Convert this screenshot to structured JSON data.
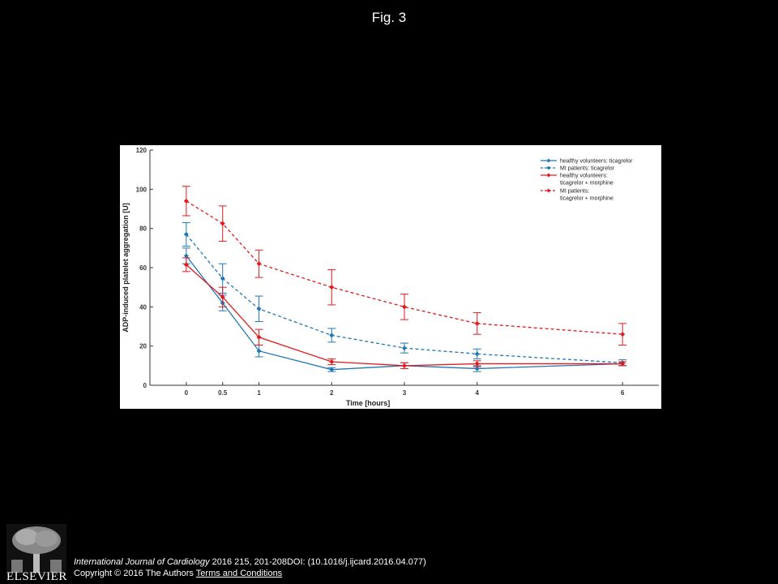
{
  "figure": {
    "title": "Fig. 3"
  },
  "footer": {
    "journal": "International Journal of Cardiology",
    "citation_rest": " 2016 215, 201-208DOI: (10.1016/j.ijcard.2016.04.077)",
    "copyright": "Copyright © 2016 The Authors",
    "terms_link": "Terms and Conditions",
    "publisher_logo_text": "ELSEVIER"
  },
  "chart_data": {
    "type": "line",
    "title": "",
    "xlabel": "Time [hours]",
    "ylabel": "ADP-induced platelet aggregation [U]",
    "x": [
      0,
      0.5,
      1,
      2,
      3,
      4,
      6
    ],
    "xticks": [
      "0",
      "0.5",
      "1",
      "2",
      "3",
      "4",
      "6"
    ],
    "yticks": [
      "0",
      "20",
      "40",
      "60",
      "80",
      "100",
      "120"
    ],
    "xlim": [
      -0.5,
      6.5
    ],
    "ylim": [
      0,
      120
    ],
    "legend_position": "top-right",
    "grid": false,
    "series": [
      {
        "name": "healthy volunteers: ticagrelor",
        "color": "#1f77b4",
        "dash": "solid",
        "values": [
          66,
          42,
          17.5,
          8,
          10,
          8.5,
          11
        ],
        "errors": [
          4,
          4,
          3,
          1,
          1.5,
          1.5,
          1
        ]
      },
      {
        "name": "MI patients: ticagrelor",
        "color": "#1f77b4",
        "dash": "dashed",
        "values": [
          77,
          54.5,
          39,
          25.5,
          19,
          16,
          11.5
        ],
        "errors": [
          6,
          7.5,
          6.5,
          3.5,
          2.5,
          2.5,
          1.5
        ]
      },
      {
        "name": "healthy volunteers:\nticagrelor + morphine",
        "color": "#e31a1c",
        "dash": "solid",
        "values": [
          61.5,
          45,
          24.5,
          12,
          10,
          11,
          11
        ],
        "errors": [
          3.5,
          5,
          4,
          1.5,
          1.5,
          1.5,
          1
        ]
      },
      {
        "name": "MI patients:\nticagrelor + morphine",
        "color": "#e31a1c",
        "dash": "dashed",
        "values": [
          94,
          82.5,
          62,
          50,
          40,
          31.5,
          26
        ],
        "errors": [
          7.5,
          9,
          7,
          9,
          6.5,
          5.5,
          5.5
        ]
      }
    ]
  }
}
